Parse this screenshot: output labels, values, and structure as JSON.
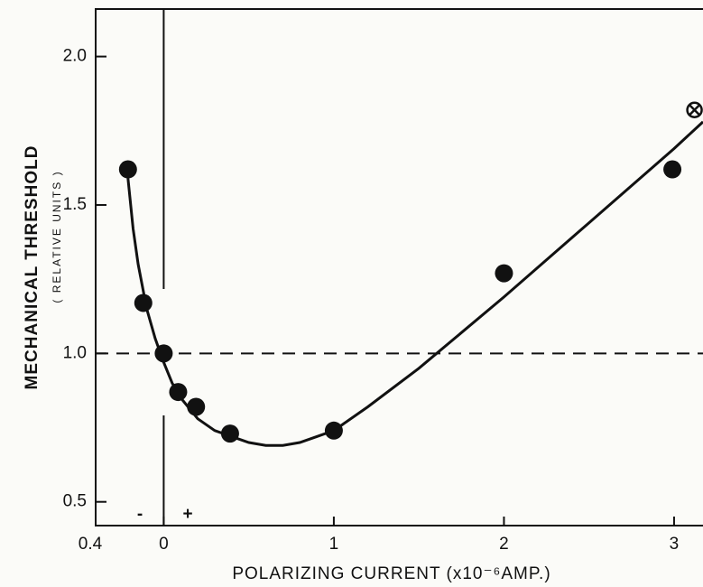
{
  "chart_data": {
    "type": "scatter",
    "x_label": "POLARIZING  CURRENT (x10⁻⁶AMP.)",
    "y_label": "MECHANICAL  THRESHOLD",
    "y_sublabel": "( RELATIVE  UNITS )",
    "annotations": [
      "-",
      "+"
    ],
    "x": [
      -0.21,
      -0.12,
      0,
      0.085,
      0.19,
      0.39,
      1.0,
      2.0,
      2.99
    ],
    "values": [
      1.62,
      1.17,
      1.0,
      0.87,
      0.82,
      0.73,
      0.74,
      1.27,
      1.62
    ],
    "crossed_point": {
      "x": 3.12,
      "value": 1.82
    },
    "fit_curve": {
      "x": [
        -0.21,
        -0.18,
        -0.15,
        -0.1,
        -0.05,
        0,
        0.05,
        0.1,
        0.2,
        0.3,
        0.4,
        0.5,
        0.6,
        0.7,
        0.8,
        0.9,
        1.0,
        1.2,
        1.5,
        2.0,
        2.5,
        3.0,
        3.17
      ],
      "values": [
        1.59,
        1.42,
        1.3,
        1.15,
        1.05,
        0.97,
        0.9,
        0.85,
        0.78,
        0.74,
        0.72,
        0.7,
        0.69,
        0.69,
        0.7,
        0.72,
        0.74,
        0.82,
        0.95,
        1.19,
        1.44,
        1.69,
        1.78
      ]
    },
    "reference_line": 1.0,
    "zero_line": 0,
    "color": "#111111",
    "xlim": [
      -0.4,
      3.17
    ],
    "ylim": [
      0.42,
      2.16
    ],
    "xticks": [
      {
        "value": -0.4,
        "label": "0.4"
      },
      0,
      1,
      2,
      3
    ],
    "yticks": [
      0.5,
      {
        "value": 1.0,
        "label": "1.0"
      },
      1.5,
      {
        "value": 2.0,
        "label": "2.0"
      }
    ],
    "grid": false
  }
}
